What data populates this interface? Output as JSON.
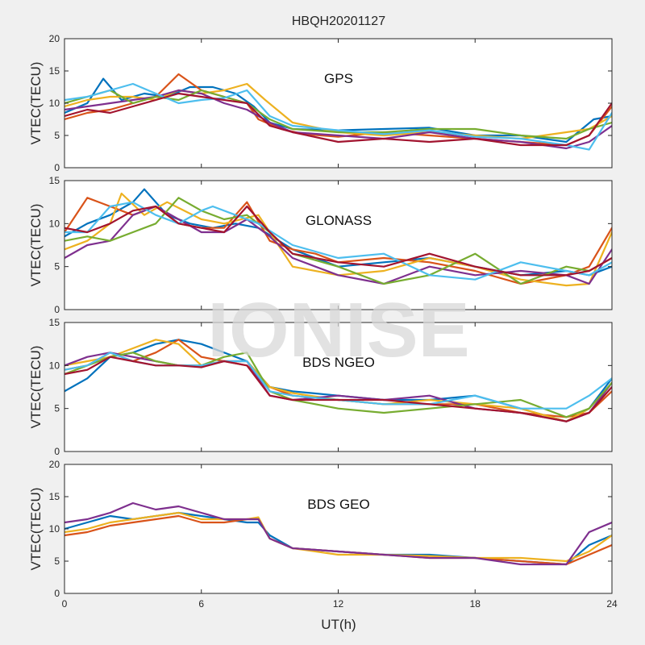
{
  "figure": {
    "title": "HBQH20201127",
    "watermark": "IONISE",
    "xlabel": "UT(h)",
    "ylabel": "VTEC(TECU)",
    "xlim": [
      0,
      24
    ],
    "xticks": [
      0,
      6,
      12,
      18,
      24
    ]
  },
  "colors": [
    "#0072BD",
    "#D95319",
    "#EDB120",
    "#7E2F8E",
    "#77AC30",
    "#4DBEEE",
    "#A2142F"
  ],
  "chart_data": [
    {
      "type": "line",
      "label": "GPS",
      "ylabel": "VTEC(TECU)",
      "ylim": [
        0,
        20
      ],
      "yticks": [
        0,
        5,
        10,
        15,
        20
      ],
      "series": [
        {
          "x": [
            0,
            1,
            1.7,
            2.5,
            3.5,
            4.5,
            5.5,
            6.5,
            7.5,
            8.3,
            9,
            10,
            12,
            14,
            16,
            18,
            20,
            22,
            23.2,
            24
          ],
          "y": [
            8.5,
            10,
            13.8,
            10.5,
            11.5,
            11,
            12.5,
            12.5,
            11.5,
            9.5,
            7,
            6,
            5.8,
            6,
            6.2,
            5,
            5,
            4,
            7.5,
            8
          ]
        },
        {
          "x": [
            0,
            1,
            2,
            3,
            4,
            5,
            6,
            7,
            8,
            8.5,
            9.5,
            10.5,
            12,
            14,
            16,
            18,
            20,
            22,
            23,
            24
          ],
          "y": [
            7.5,
            8.5,
            9,
            10,
            11,
            14.5,
            12,
            11,
            10,
            7.5,
            6,
            5.2,
            4.8,
            5.5,
            5,
            4.5,
            4,
            3.5,
            5,
            9.5
          ]
        },
        {
          "x": [
            0,
            1,
            2,
            3,
            4,
            5,
            6,
            7,
            8,
            8.8,
            10,
            12,
            14,
            16,
            18,
            20,
            22,
            23,
            24
          ],
          "y": [
            9.5,
            10.5,
            11,
            11,
            10.5,
            12,
            11.5,
            12,
            13,
            10.5,
            7,
            5.5,
            5,
            5.5,
            5,
            4.5,
            5.5,
            6,
            8
          ]
        },
        {
          "x": [
            0,
            1,
            2,
            3,
            4,
            5,
            6,
            7,
            8,
            9,
            10,
            12,
            14,
            16,
            18,
            20,
            22,
            23,
            24
          ],
          "y": [
            9,
            9.5,
            10,
            10.5,
            11,
            12,
            11.5,
            10,
            9,
            7,
            5.5,
            5,
            4.5,
            5.5,
            4.5,
            4,
            3,
            4,
            6.5
          ]
        },
        {
          "x": [
            0,
            1,
            2,
            3,
            4,
            5,
            6,
            7,
            8,
            9,
            10,
            12,
            14,
            16,
            18,
            20,
            22,
            23,
            24
          ],
          "y": [
            10,
            11,
            12,
            10,
            11,
            10.5,
            12,
            11,
            10,
            7.5,
            6,
            5.5,
            5.5,
            6,
            6,
            5,
            4.5,
            6,
            7
          ]
        },
        {
          "x": [
            0,
            1,
            2,
            3,
            4,
            5,
            6,
            7,
            8,
            9,
            10,
            12,
            14,
            16,
            18,
            20,
            22,
            23,
            24
          ],
          "y": [
            10.5,
            11,
            12,
            13,
            11.5,
            10,
            10.5,
            10.8,
            12,
            8,
            6.5,
            5.8,
            5.2,
            5.8,
            4.8,
            4.5,
            3.5,
            2.8,
            8.5
          ]
        },
        {
          "x": [
            0,
            1,
            2,
            3,
            4,
            5,
            6,
            7,
            8,
            9,
            10,
            12,
            14,
            16,
            18,
            20,
            22,
            23,
            24
          ],
          "y": [
            8,
            9,
            8.5,
            9.5,
            10.5,
            11.5,
            11,
            10.5,
            10,
            6.5,
            5.5,
            4,
            4.5,
            4,
            4.5,
            3.5,
            3.5,
            5,
            10
          ]
        }
      ]
    },
    {
      "type": "line",
      "label": "GLONASS",
      "ylabel": "VTEC(TECU)",
      "ylim": [
        0,
        15
      ],
      "yticks": [
        0,
        5,
        10,
        15
      ],
      "series": [
        {
          "x": [
            0,
            1,
            2,
            3,
            3.5,
            4.5,
            5.5,
            6.5,
            7.5,
            8.5,
            10,
            12,
            14,
            16,
            18,
            20,
            22,
            23,
            24
          ],
          "y": [
            8.5,
            10,
            11,
            12.5,
            14,
            11,
            10,
            9.5,
            10,
            9.5,
            7,
            5,
            5.5,
            6,
            5,
            4,
            4.5,
            4,
            5
          ]
        },
        {
          "x": [
            0,
            1,
            2,
            3,
            4,
            5,
            6,
            7,
            8,
            9,
            10,
            11,
            12,
            14,
            16,
            18,
            20,
            22,
            23,
            24
          ],
          "y": [
            9,
            13,
            12,
            11,
            12,
            10,
            9.5,
            9.5,
            12.5,
            8,
            7,
            6.5,
            5.5,
            6,
            5.5,
            4.5,
            3,
            4,
            5,
            9.5
          ]
        },
        {
          "x": [
            0,
            1,
            2,
            2.5,
            3.5,
            4.5,
            6,
            7,
            8.5,
            10,
            12,
            14,
            16,
            18,
            20,
            22,
            23,
            24
          ],
          "y": [
            7,
            8,
            10,
            13.5,
            11,
            12.5,
            10.5,
            10,
            11,
            5,
            4,
            4.5,
            6,
            5,
            3.5,
            2.8,
            3,
            9
          ]
        },
        {
          "x": [
            0,
            1,
            2,
            3,
            4,
            5,
            6,
            7,
            8,
            9,
            10,
            12,
            14,
            16,
            18,
            20,
            22,
            23,
            24
          ],
          "y": [
            6,
            7.5,
            8,
            11,
            12,
            10.5,
            9,
            9,
            10.5,
            8.5,
            6,
            4,
            3,
            5,
            4,
            4.5,
            4,
            3,
            7
          ]
        },
        {
          "x": [
            0,
            1,
            2,
            3,
            4,
            5,
            6,
            7,
            8,
            9,
            10,
            12,
            14,
            16,
            18,
            20,
            22,
            23,
            24
          ],
          "y": [
            8,
            8.5,
            8,
            9,
            10,
            13,
            11.5,
            10.5,
            11,
            9,
            6.5,
            5,
            3,
            4,
            6.5,
            3,
            5,
            4.5,
            6
          ]
        },
        {
          "x": [
            0,
            1,
            2,
            3,
            4,
            5,
            6,
            6.5,
            7.5,
            8.5,
            10,
            12,
            14,
            16,
            18,
            20,
            22,
            23,
            24
          ],
          "y": [
            9,
            9,
            12,
            12.5,
            11,
            10,
            11.5,
            12,
            11,
            10,
            7.5,
            6,
            6.5,
            4,
            3.5,
            5.5,
            4.5,
            4,
            5.5
          ]
        },
        {
          "x": [
            0,
            1,
            2,
            3,
            4,
            5,
            6,
            7,
            8,
            9,
            10,
            12,
            14,
            16,
            18,
            20,
            22,
            23,
            24
          ],
          "y": [
            9.5,
            9,
            10,
            11.5,
            12,
            10,
            9.5,
            9,
            12,
            9,
            6.5,
            5.5,
            5,
            6.5,
            5,
            4,
            4,
            4.5,
            6
          ]
        }
      ]
    },
    {
      "type": "line",
      "label": "BDS NGEO",
      "ylabel": "VTEC(TECU)",
      "ylim": [
        0,
        15
      ],
      "yticks": [
        0,
        5,
        10,
        15
      ],
      "series": [
        {
          "x": [
            0,
            1,
            2,
            3,
            4,
            5,
            6,
            7,
            8,
            9,
            10,
            12,
            14,
            16,
            18,
            20,
            22,
            23,
            24
          ],
          "y": [
            7,
            8.5,
            11,
            11.5,
            12.5,
            13,
            12.5,
            11.5,
            10.5,
            7.5,
            7,
            6.5,
            6,
            6,
            6.5,
            5,
            3.5,
            5,
            8.5
          ]
        },
        {
          "x": [
            0,
            1,
            2,
            3,
            4,
            5,
            6,
            7,
            8,
            9,
            10,
            12,
            14,
            16,
            18,
            20,
            22,
            23,
            24
          ],
          "y": [
            9.5,
            10,
            11.5,
            10.5,
            11.5,
            13,
            11,
            10.5,
            10,
            7.5,
            6.5,
            6,
            5.5,
            5.5,
            5.5,
            4.5,
            4,
            4.5,
            7
          ]
        },
        {
          "x": [
            0,
            1,
            2,
            3,
            4,
            5,
            6,
            7,
            8,
            9,
            10,
            12,
            14,
            16,
            18,
            20,
            22,
            23,
            24
          ],
          "y": [
            10,
            10.5,
            11,
            12,
            13,
            12.5,
            10,
            10.5,
            10.5,
            7.5,
            6.8,
            6,
            5.5,
            6,
            5.5,
            5,
            3.5,
            5,
            8
          ]
        },
        {
          "x": [
            0,
            1,
            2,
            3,
            4,
            5,
            6,
            7,
            8,
            9,
            10,
            12,
            14,
            16,
            18,
            20,
            22,
            23,
            24
          ],
          "y": [
            10,
            11,
            11.5,
            11,
            10.5,
            10,
            10,
            10.5,
            10.5,
            6.5,
            6,
            6.5,
            6,
            6.5,
            5,
            4.5,
            3.5,
            4.5,
            8
          ]
        },
        {
          "x": [
            0,
            1,
            2,
            3,
            4,
            5,
            6,
            7,
            8,
            9,
            10,
            12,
            14,
            16,
            18,
            20,
            22,
            23,
            24
          ],
          "y": [
            9,
            10,
            11,
            11.5,
            10.5,
            10,
            10,
            11,
            11.5,
            7,
            6,
            5,
            4.5,
            5,
            5.5,
            6,
            4,
            5,
            8
          ]
        },
        {
          "x": [
            0,
            1,
            2,
            3,
            4,
            5,
            6,
            7,
            8,
            9,
            10,
            12,
            14,
            16,
            18,
            20,
            22,
            23,
            24
          ],
          "y": [
            9.5,
            10,
            11.5,
            10.5,
            10,
            10,
            10,
            10.5,
            10.5,
            7,
            6.5,
            6,
            5.5,
            5.5,
            6.5,
            5,
            5,
            6.5,
            8.5
          ]
        },
        {
          "x": [
            0,
            1,
            2,
            3,
            4,
            5,
            6,
            7,
            8,
            9,
            10,
            12,
            14,
            16,
            18,
            20,
            22,
            23,
            24
          ],
          "y": [
            9,
            9.5,
            11,
            10.5,
            10,
            10,
            9.8,
            10.5,
            10,
            6.5,
            6,
            6,
            6,
            5.5,
            5,
            4.5,
            3.5,
            4.5,
            7.5
          ]
        }
      ]
    },
    {
      "type": "line",
      "label": "BDS GEO",
      "ylabel": "VTEC(TECU)",
      "ylim": [
        0,
        20
      ],
      "yticks": [
        0,
        5,
        10,
        15,
        20
      ],
      "series": [
        {
          "x": [
            0,
            1,
            2,
            3,
            4,
            5,
            6,
            7,
            8,
            8.5,
            9,
            10,
            12,
            14,
            16,
            18,
            20,
            22,
            23,
            24
          ],
          "y": [
            10,
            11,
            12,
            11.5,
            12,
            12.5,
            12,
            11.5,
            11,
            11,
            9,
            7,
            6.5,
            6,
            6,
            5.5,
            5,
            4.5,
            7.5,
            9
          ]
        },
        {
          "x": [
            0,
            1,
            2,
            3,
            4,
            5,
            6,
            7,
            8,
            8.5,
            9,
            10,
            12,
            14,
            16,
            18,
            20,
            22,
            23,
            24
          ],
          "y": [
            9,
            9.5,
            10.5,
            11,
            11.5,
            12,
            11,
            11,
            11.5,
            11.5,
            8.5,
            7,
            6.5,
            6,
            5.5,
            5.5,
            5,
            4.5,
            6,
            7.5
          ]
        },
        {
          "x": [
            0,
            1,
            2,
            3,
            4,
            5,
            6,
            7,
            8,
            8.5,
            9,
            10,
            12,
            14,
            16,
            18,
            20,
            22,
            23,
            24
          ],
          "y": [
            9.5,
            10,
            11,
            11.5,
            12,
            12.5,
            11.5,
            11.5,
            11.5,
            11.8,
            8.5,
            7,
            6,
            6,
            5.8,
            5.5,
            5.5,
            5,
            6.5,
            9
          ]
        },
        {
          "x": [
            0,
            1,
            2,
            3,
            4,
            5,
            6,
            7,
            8,
            8.5,
            9,
            10,
            12,
            14,
            16,
            18,
            20,
            22,
            23,
            24
          ],
          "y": [
            11,
            11.5,
            12.5,
            14,
            13,
            13.5,
            12.5,
            11.5,
            11.5,
            11.5,
            8.5,
            7,
            6.5,
            6,
            5.5,
            5.5,
            4.5,
            4.5,
            9.5,
            11
          ]
        }
      ]
    }
  ]
}
